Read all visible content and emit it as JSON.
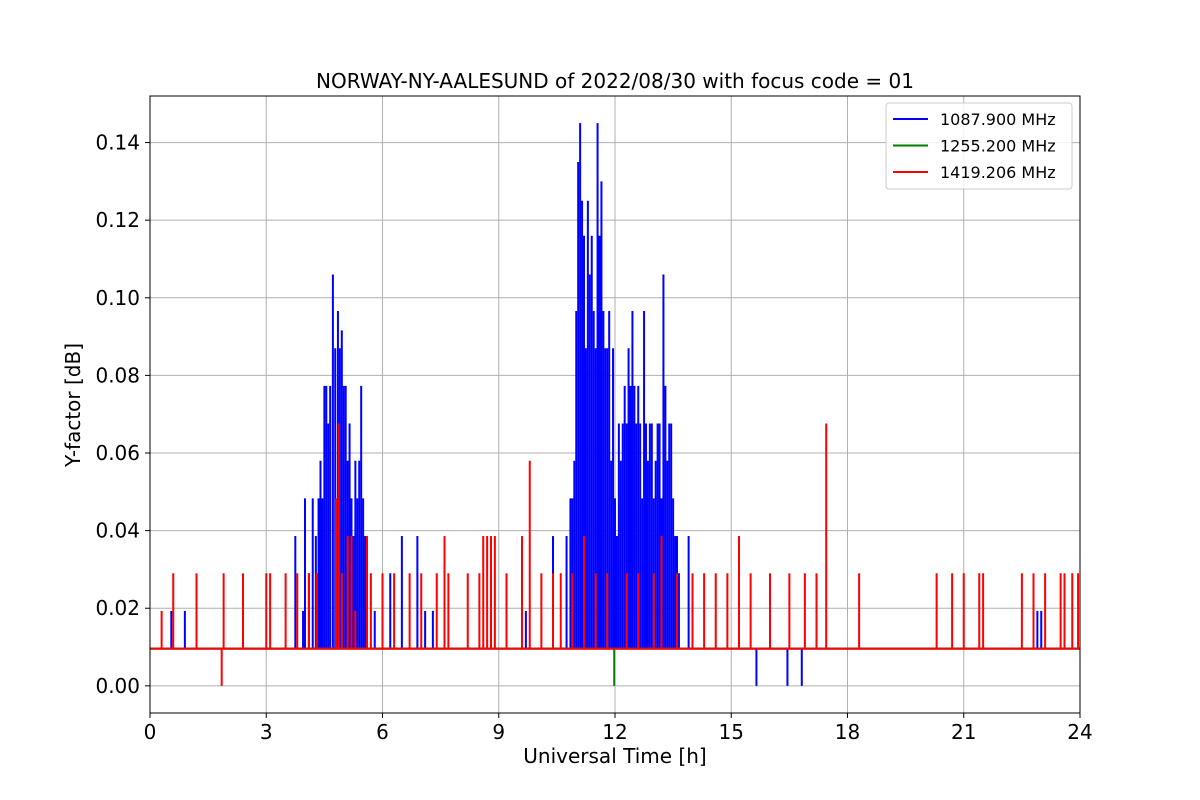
{
  "chart_data": {
    "type": "line",
    "title": "NORWAY-NY-AALESUND of 2022/08/30 with focus code = 01",
    "xlabel": "Universal Time [h]",
    "ylabel": "Y-factor [dB]",
    "xlim": [
      0,
      24
    ],
    "ylim": [
      -0.007,
      0.152
    ],
    "xticks": [
      0,
      3,
      6,
      9,
      12,
      15,
      18,
      21,
      24
    ],
    "yticks": [
      0.0,
      0.02,
      0.04,
      0.06,
      0.08,
      0.1,
      0.12,
      0.14
    ],
    "ytick_labels": [
      "0.00",
      "0.02",
      "0.04",
      "0.06",
      "0.08",
      "0.10",
      "0.12",
      "0.14"
    ],
    "grid": true,
    "legend_position": "top-right",
    "series": [
      {
        "name": "1087.900 MHz",
        "color": "#0000ff",
        "baseline": 0.0096,
        "spikes": [
          [
            0.55,
            0.0193
          ],
          [
            0.9,
            0.0193
          ],
          [
            3.75,
            0.0386
          ],
          [
            3.95,
            0.0193
          ],
          [
            4.0,
            0.0483
          ],
          [
            4.1,
            0.029
          ],
          [
            4.2,
            0.0483
          ],
          [
            4.28,
            0.0386
          ],
          [
            4.35,
            0.0483
          ],
          [
            4.4,
            0.058
          ],
          [
            4.45,
            0.0483
          ],
          [
            4.5,
            0.0773
          ],
          [
            4.55,
            0.0773
          ],
          [
            4.6,
            0.0676
          ],
          [
            4.65,
            0.0773
          ],
          [
            4.72,
            0.106
          ],
          [
            4.78,
            0.087
          ],
          [
            4.85,
            0.0966
          ],
          [
            4.9,
            0.087
          ],
          [
            4.95,
            0.0916
          ],
          [
            5.0,
            0.0773
          ],
          [
            5.05,
            0.0773
          ],
          [
            5.1,
            0.058
          ],
          [
            5.15,
            0.0676
          ],
          [
            5.2,
            0.0483
          ],
          [
            5.25,
            0.0386
          ],
          [
            5.3,
            0.058
          ],
          [
            5.35,
            0.0483
          ],
          [
            5.4,
            0.058
          ],
          [
            5.45,
            0.0773
          ],
          [
            5.5,
            0.0483
          ],
          [
            5.55,
            0.0386
          ],
          [
            5.6,
            0.029
          ],
          [
            5.8,
            0.0193
          ],
          [
            6.2,
            0.029
          ],
          [
            6.5,
            0.0386
          ],
          [
            6.9,
            0.0386
          ],
          [
            7.1,
            0.0193
          ],
          [
            7.3,
            0.0193
          ],
          [
            9.7,
            0.0193
          ],
          [
            10.4,
            0.0386
          ],
          [
            10.75,
            0.0386
          ],
          [
            10.85,
            0.0483
          ],
          [
            10.9,
            0.0483
          ],
          [
            10.95,
            0.058
          ],
          [
            11.0,
            0.0966
          ],
          [
            11.05,
            0.135
          ],
          [
            11.1,
            0.145
          ],
          [
            11.15,
            0.125
          ],
          [
            11.2,
            0.116
          ],
          [
            11.25,
            0.087
          ],
          [
            11.3,
            0.125
          ],
          [
            11.35,
            0.106
          ],
          [
            11.4,
            0.116
          ],
          [
            11.45,
            0.0966
          ],
          [
            11.5,
            0.087
          ],
          [
            11.55,
            0.145
          ],
          [
            11.6,
            0.116
          ],
          [
            11.65,
            0.13
          ],
          [
            11.7,
            0.0966
          ],
          [
            11.75,
            0.087
          ],
          [
            11.8,
            0.087
          ],
          [
            11.85,
            0.0966
          ],
          [
            11.9,
            0.058
          ],
          [
            11.95,
            0.087
          ],
          [
            12.0,
            0.0483
          ],
          [
            12.05,
            0.0386
          ],
          [
            12.1,
            0.0676
          ],
          [
            12.15,
            0.058
          ],
          [
            12.2,
            0.0676
          ],
          [
            12.25,
            0.0773
          ],
          [
            12.3,
            0.0676
          ],
          [
            12.35,
            0.087
          ],
          [
            12.4,
            0.0773
          ],
          [
            12.45,
            0.0966
          ],
          [
            12.5,
            0.0773
          ],
          [
            12.55,
            0.0676
          ],
          [
            12.6,
            0.0773
          ],
          [
            12.65,
            0.0676
          ],
          [
            12.7,
            0.0483
          ],
          [
            12.75,
            0.0966
          ],
          [
            12.8,
            0.0676
          ],
          [
            12.85,
            0.058
          ],
          [
            12.9,
            0.0676
          ],
          [
            12.95,
            0.0676
          ],
          [
            13.0,
            0.0483
          ],
          [
            13.05,
            0.058
          ],
          [
            13.1,
            0.0676
          ],
          [
            13.15,
            0.0676
          ],
          [
            13.2,
            0.0483
          ],
          [
            13.25,
            0.106
          ],
          [
            13.3,
            0.0773
          ],
          [
            13.35,
            0.058
          ],
          [
            13.4,
            0.0676
          ],
          [
            13.45,
            0.0676
          ],
          [
            13.5,
            0.0483
          ],
          [
            13.55,
            0.0386
          ],
          [
            13.6,
            0.0386
          ],
          [
            13.65,
            0.029
          ],
          [
            13.9,
            0.0386
          ],
          [
            15.65,
            0.0
          ],
          [
            16.45,
            0.0
          ],
          [
            16.82,
            0.0
          ],
          [
            22.9,
            0.0193
          ],
          [
            23.0,
            0.0193
          ]
        ]
      },
      {
        "name": "1255.200 MHz",
        "color": "#008000",
        "baseline": 0.0096,
        "spikes": [
          [
            11.98,
            0.0
          ]
        ]
      },
      {
        "name": "1419.206 MHz",
        "color": "#ff0000",
        "baseline": 0.0096,
        "spikes": [
          [
            0.3,
            0.0193
          ],
          [
            0.6,
            0.029
          ],
          [
            1.2,
            0.029
          ],
          [
            1.85,
            0.0
          ],
          [
            1.9,
            0.029
          ],
          [
            2.4,
            0.029
          ],
          [
            3.0,
            0.029
          ],
          [
            3.1,
            0.029
          ],
          [
            3.5,
            0.029
          ],
          [
            3.8,
            0.029
          ],
          [
            4.1,
            0.029
          ],
          [
            4.3,
            0.029
          ],
          [
            4.8,
            0.0483
          ],
          [
            4.87,
            0.0676
          ],
          [
            4.95,
            0.029
          ],
          [
            5.1,
            0.0386
          ],
          [
            5.2,
            0.0386
          ],
          [
            5.3,
            0.0193
          ],
          [
            5.6,
            0.0386
          ],
          [
            5.7,
            0.029
          ],
          [
            6.0,
            0.029
          ],
          [
            6.3,
            0.029
          ],
          [
            6.7,
            0.029
          ],
          [
            7.0,
            0.029
          ],
          [
            7.4,
            0.029
          ],
          [
            7.6,
            0.0386
          ],
          [
            7.7,
            0.029
          ],
          [
            8.2,
            0.029
          ],
          [
            8.5,
            0.029
          ],
          [
            8.6,
            0.0386
          ],
          [
            8.7,
            0.0386
          ],
          [
            8.8,
            0.0386
          ],
          [
            8.9,
            0.0386
          ],
          [
            9.2,
            0.029
          ],
          [
            9.6,
            0.0386
          ],
          [
            9.8,
            0.058
          ],
          [
            10.1,
            0.029
          ],
          [
            10.4,
            0.029
          ],
          [
            10.6,
            0.029
          ],
          [
            10.9,
            0.029
          ],
          [
            11.2,
            0.0386
          ],
          [
            11.5,
            0.029
          ],
          [
            11.8,
            0.029
          ],
          [
            12.3,
            0.029
          ],
          [
            12.6,
            0.029
          ],
          [
            13.0,
            0.029
          ],
          [
            13.2,
            0.0386
          ],
          [
            13.6,
            0.029
          ],
          [
            14.0,
            0.029
          ],
          [
            14.3,
            0.029
          ],
          [
            14.6,
            0.029
          ],
          [
            14.9,
            0.029
          ],
          [
            15.2,
            0.0386
          ],
          [
            15.5,
            0.029
          ],
          [
            16.0,
            0.029
          ],
          [
            16.5,
            0.029
          ],
          [
            16.9,
            0.029
          ],
          [
            17.2,
            0.029
          ],
          [
            17.45,
            0.0676
          ],
          [
            18.3,
            0.029
          ],
          [
            20.3,
            0.029
          ],
          [
            20.7,
            0.029
          ],
          [
            21.0,
            0.029
          ],
          [
            21.4,
            0.029
          ],
          [
            21.5,
            0.029
          ],
          [
            22.5,
            0.029
          ],
          [
            22.8,
            0.029
          ],
          [
            23.1,
            0.029
          ],
          [
            23.5,
            0.029
          ],
          [
            23.6,
            0.029
          ],
          [
            23.8,
            0.029
          ],
          [
            23.95,
            0.029
          ]
        ]
      }
    ]
  }
}
